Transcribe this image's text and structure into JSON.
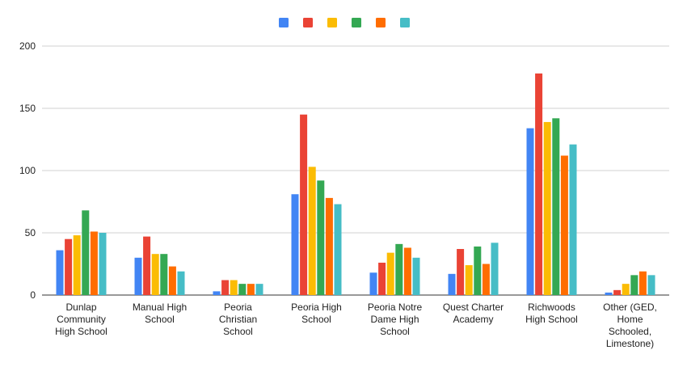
{
  "chart_data": {
    "type": "bar",
    "title": "",
    "xlabel": "",
    "ylabel": "",
    "ylim": [
      0,
      200
    ],
    "yticks": [
      "0",
      "50",
      "100",
      "150",
      "200"
    ],
    "grid": true,
    "legend_position": "top",
    "categories": [
      "Dunlap Community High School",
      "Manual High School",
      "Peoria Christian School",
      "Peoria High School",
      "Peoria Notre Dame High School",
      "Quest Charter Academy",
      "Richwoods High School",
      "Other (GED, Home Schooled, Limestone)"
    ],
    "series": [
      {
        "color": "#4285F4",
        "values": [
          36,
          30,
          3,
          81,
          18,
          17,
          134,
          2
        ]
      },
      {
        "color": "#EA4335",
        "values": [
          45,
          47,
          12,
          145,
          26,
          37,
          178,
          4
        ]
      },
      {
        "color": "#FBBC04",
        "values": [
          48,
          33,
          12,
          103,
          34,
          24,
          139,
          9
        ]
      },
      {
        "color": "#34A853",
        "values": [
          68,
          33,
          9,
          92,
          41,
          39,
          142,
          16
        ]
      },
      {
        "color": "#FF6D01",
        "values": [
          51,
          23,
          9,
          78,
          38,
          25,
          112,
          19
        ]
      },
      {
        "color": "#46BDC6",
        "values": [
          50,
          19,
          9,
          73,
          30,
          42,
          121,
          16
        ]
      }
    ]
  }
}
